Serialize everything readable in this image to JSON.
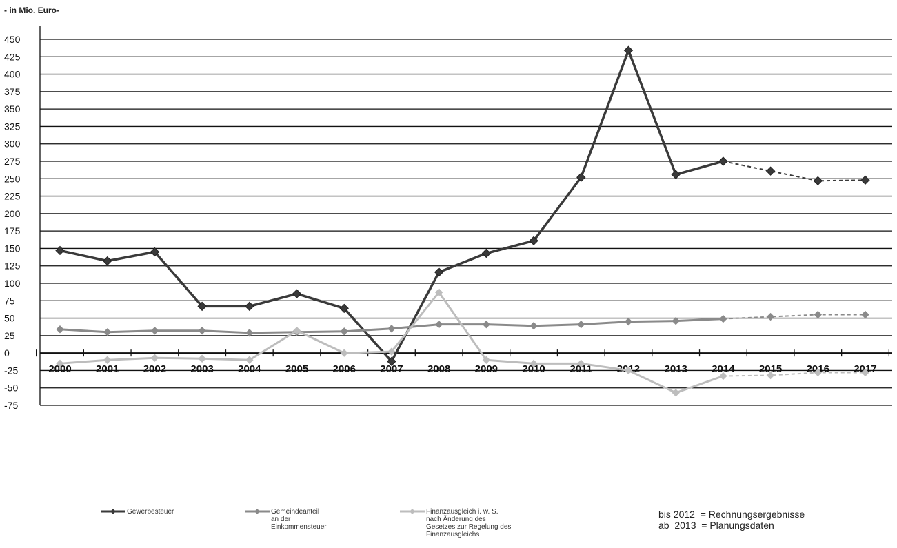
{
  "chart_data": {
    "type": "line",
    "unit_label": "- in Mio. Euro-",
    "y_ticks": [
      450,
      425,
      400,
      375,
      350,
      325,
      300,
      275,
      250,
      225,
      200,
      175,
      150,
      125,
      100,
      75,
      50,
      25,
      0,
      -25,
      -50,
      -75
    ],
    "ylim": [
      -75,
      450
    ],
    "categories": [
      "2000",
      "2001",
      "2002",
      "2003",
      "2004",
      "2005",
      "2006",
      "2007",
      "2008",
      "2009",
      "2010",
      "2011",
      "2012",
      "2013",
      "2014",
      "2015",
      "2016",
      "2017"
    ],
    "grid": true,
    "series": [
      {
        "name": "Gewerbesteuer",
        "color": "#3a3a3a",
        "values": [
          147,
          132,
          145,
          67,
          67,
          85,
          64,
          -12,
          116,
          143,
          161,
          252,
          434,
          256,
          275,
          261,
          247,
          248
        ]
      },
      {
        "name": "Gemeindeanteil\nan der\nEinkommensteuer",
        "color": "#8a8a8a",
        "values": [
          34,
          30,
          32,
          32,
          29,
          30,
          31,
          35,
          41,
          41,
          39,
          41,
          45,
          46,
          49,
          52,
          55,
          55
        ]
      },
      {
        "name": "Finanzausgleich i. w. S.\nnach Änderung des\nGesetzes zur Regelung des\nFinanzausgleichs",
        "color": "#bdbdbd",
        "values": [
          -15,
          -10,
          -7,
          -8,
          -10,
          32,
          0,
          2,
          87,
          -10,
          -15,
          -15,
          -25,
          -57,
          -33,
          -32,
          -28,
          -28
        ]
      }
    ],
    "dashed_from": "2014",
    "annotation": [
      {
        "left": "bis 2012",
        "right": "= Rechnungsergebnisse"
      },
      {
        "left": "ab  2013",
        "right": "= Planungsdaten"
      }
    ]
  }
}
